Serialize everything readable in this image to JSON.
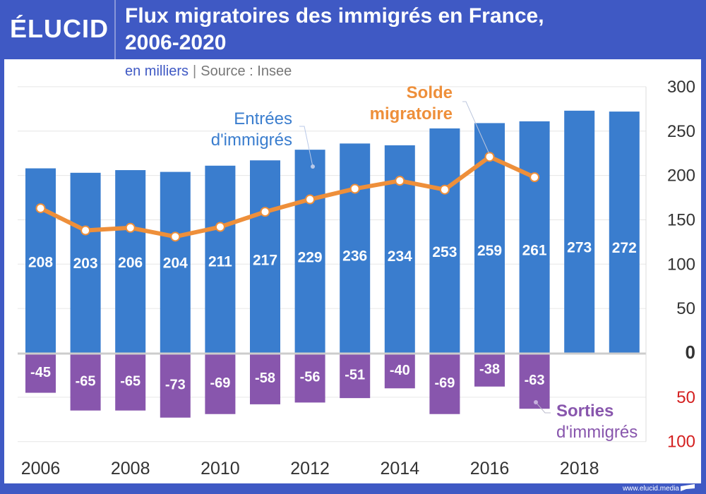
{
  "brand": {
    "logo": "ÉLUCID",
    "url": "www.elucid.media"
  },
  "header": {
    "title_line1": "Flux migratoires des immigrés en France,",
    "title_line2": "2006-2020",
    "unit": "en milliers",
    "separator": "|",
    "source": "Source : Insee"
  },
  "colors": {
    "frame": "#3f59c4",
    "entrees": "#3a7dce",
    "sorties": "#8856ad",
    "solde": "#ee8f3a",
    "negative_axis": "#d42020"
  },
  "chart_data": {
    "type": "bar",
    "title": "Flux migratoires des immigrés en France, 2006-2020",
    "subtitle": "en milliers | Source : Insee",
    "xlabel": "",
    "ylabel": "",
    "x": [
      2006,
      2007,
      2008,
      2009,
      2010,
      2011,
      2012,
      2013,
      2014,
      2015,
      2016,
      2017,
      2018,
      2019
    ],
    "x_tick_labels": [
      "2006",
      "2008",
      "2010",
      "2012",
      "2014",
      "2016",
      "2018"
    ],
    "x_tick_values": [
      2006,
      2008,
      2010,
      2012,
      2014,
      2016,
      2018
    ],
    "ylim": [
      -100,
      300
    ],
    "y_ticks": [
      300,
      250,
      200,
      150,
      100,
      50,
      0,
      -50,
      -100
    ],
    "y_tick_labels": [
      "300",
      "250",
      "200",
      "150",
      "100",
      "50",
      "0",
      "50",
      "100"
    ],
    "y_axis_side": "right",
    "grid": true,
    "series": [
      {
        "name": "Entrées d'immigrés",
        "type": "bar",
        "values": [
          208,
          203,
          206,
          204,
          211,
          217,
          229,
          236,
          234,
          253,
          259,
          261,
          273,
          272
        ],
        "labels": [
          "208",
          "203",
          "206",
          "204",
          "211",
          "217",
          "229",
          "236",
          "234",
          "253",
          "259",
          "261",
          "273",
          "272"
        ]
      },
      {
        "name": "Sorties d'immigrés",
        "type": "bar",
        "values": [
          -45,
          -65,
          -65,
          -73,
          -69,
          -58,
          -56,
          -51,
          -40,
          -69,
          -38,
          -63,
          null,
          null
        ],
        "labels": [
          "-45",
          "-65",
          "-65",
          "-73",
          "-69",
          "-58",
          "-56",
          "-51",
          "-40",
          "-69",
          "-38",
          "-63",
          "",
          ""
        ]
      },
      {
        "name": "Solde migratoire",
        "type": "line",
        "values": [
          163,
          138,
          141,
          131,
          142,
          159,
          173,
          185,
          194,
          184,
          221,
          198,
          null,
          null
        ]
      }
    ],
    "annotations": [
      {
        "text_line1": "Entrées",
        "text_line2": "d'immigrés",
        "series": "Entrées d'immigrés",
        "anchor_year": 2012,
        "anchor_value": 215
      },
      {
        "text_line1": "Solde",
        "text_line2": "migratoire",
        "series": "Solde migratoire",
        "anchor_year": 2016,
        "anchor_value": 221
      },
      {
        "text_line1": "Sorties",
        "text_line2": "d'immigrés",
        "series": "Sorties d'immigrés",
        "anchor_year": 2017,
        "anchor_value": -58
      }
    ]
  }
}
